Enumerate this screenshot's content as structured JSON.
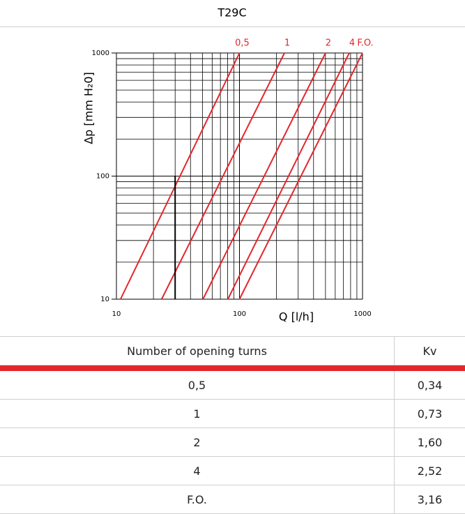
{
  "header": {
    "title": "T29C"
  },
  "chart_data": {
    "type": "line",
    "log_x": true,
    "log_y": true,
    "grid": "minor",
    "xlabel": "Q [l/h]",
    "ylabel": "Δp [mm H₂0]",
    "xlim": [
      10,
      1000
    ],
    "ylim": [
      10,
      1000
    ],
    "xticks": [
      10,
      100,
      1000
    ],
    "yticks": [
      10,
      100,
      1000
    ],
    "series": [
      {
        "name": "0,5",
        "color": "#e3262b",
        "x": [
          10.8,
          100
        ],
        "values": [
          10,
          1000
        ]
      },
      {
        "name": "1",
        "color": "#e3262b",
        "x": [
          23.3,
          232
        ],
        "values": [
          10,
          1000
        ]
      },
      {
        "name": "2",
        "color": "#e3262b",
        "x": [
          50.5,
          500
        ],
        "values": [
          10,
          1000
        ]
      },
      {
        "name": "4",
        "color": "#e3262b",
        "x": [
          80.5,
          780
        ],
        "values": [
          10,
          1000
        ]
      },
      {
        "name": "F.O.",
        "color": "#e3262b",
        "x": [
          100,
          1000
        ],
        "values": [
          10,
          1000
        ]
      }
    ],
    "marker": {
      "color": "#000000",
      "x": [
        30,
        30
      ],
      "values": [
        10,
        100
      ]
    }
  },
  "table": {
    "columns": [
      "Number of opening turns",
      "Kv"
    ],
    "rows": [
      [
        "0,5",
        "0,34"
      ],
      [
        "1",
        "0,73"
      ],
      [
        "2",
        "1,60"
      ],
      [
        "4",
        "2,52"
      ],
      [
        "F.O.",
        "3,16"
      ]
    ]
  }
}
